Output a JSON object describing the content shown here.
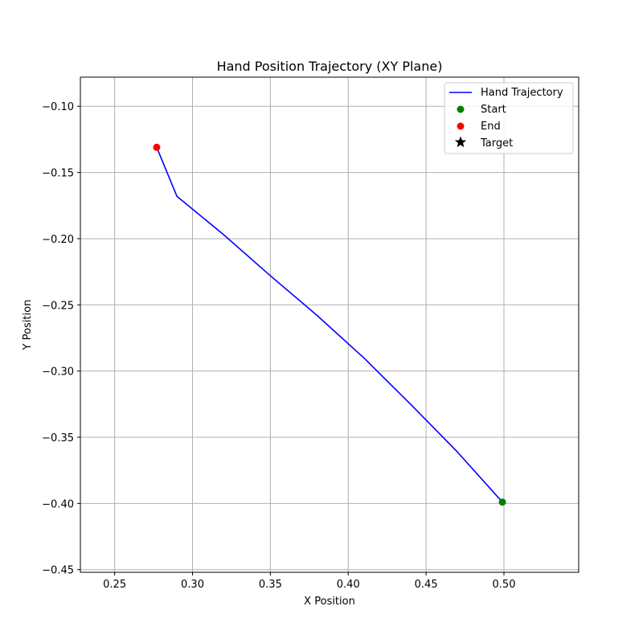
{
  "chart_data": {
    "type": "line",
    "title": "Hand Position Trajectory (XY Plane)",
    "xlabel": "X Position",
    "ylabel": "Y Position",
    "xlim": [
      0.228,
      0.548
    ],
    "ylim": [
      -0.452,
      -0.078
    ],
    "xticks": [
      0.25,
      0.3,
      0.35,
      0.4,
      0.45,
      0.5
    ],
    "xtick_labels": [
      "0.25",
      "0.30",
      "0.35",
      "0.40",
      "0.45",
      "0.50"
    ],
    "yticks": [
      -0.1,
      -0.15,
      -0.2,
      -0.25,
      -0.3,
      -0.35,
      -0.4,
      -0.45
    ],
    "ytick_labels": [
      "−0.10",
      "−0.15",
      "−0.20",
      "−0.25",
      "−0.30",
      "−0.35",
      "−0.40",
      "−0.45"
    ],
    "grid": true,
    "legend_position": "top-right",
    "series": [
      {
        "name": "Hand Trajectory",
        "kind": "line",
        "color": "#0000ff",
        "x": [
          0.499,
          0.47,
          0.44,
          0.41,
          0.38,
          0.35,
          0.32,
          0.29,
          0.277
        ],
        "y": [
          -0.399,
          -0.361,
          -0.325,
          -0.29,
          -0.258,
          -0.228,
          -0.197,
          -0.168,
          -0.131
        ]
      },
      {
        "name": "Start",
        "kind": "point",
        "color": "#008000",
        "x": [
          0.499
        ],
        "y": [
          -0.399
        ]
      },
      {
        "name": "End",
        "kind": "point",
        "color": "#ff0000",
        "x": [
          0.277
        ],
        "y": [
          -0.131
        ]
      },
      {
        "name": "Target",
        "kind": "star",
        "color": "#000000",
        "x": [],
        "y": []
      }
    ]
  }
}
